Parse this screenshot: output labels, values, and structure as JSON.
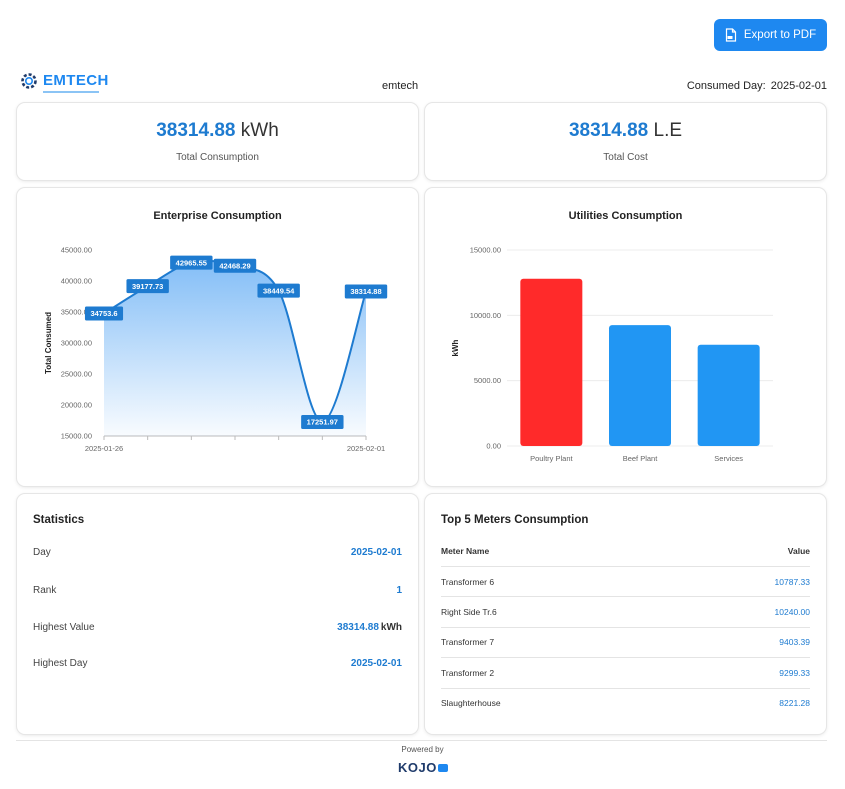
{
  "toolbar": {
    "export_label": "Export to PDF",
    "export_icon": "pdf-file-icon"
  },
  "header": {
    "logo_text": "EMTECH",
    "logo_icon": "gear-icon",
    "enterprise": "emtech",
    "consumed_day_label": "Consumed Day:",
    "consumed_day_value": "2025-02-01"
  },
  "kpis": {
    "consumption": {
      "value": "38314.88",
      "unit": "kWh",
      "label": "Total Consumption"
    },
    "cost": {
      "value": "38314.88",
      "unit": "L.E",
      "label": "Total Cost"
    }
  },
  "colors": {
    "accent": "#1e88f0",
    "value_blue": "#1e7bd0",
    "bar_red": "#ff2a2a",
    "bar_blue": "#2196f3"
  },
  "chart_data": [
    {
      "type": "area",
      "title": "Enterprise Consumption",
      "xlabel": "",
      "ylabel": "Total Consumed",
      "x": [
        "2025-01-26",
        "2025-01-27",
        "2025-01-28",
        "2025-01-29",
        "2025-01-30",
        "2025-01-31",
        "2025-02-01"
      ],
      "x_tick_labels": [
        "2025-01-26",
        "2025-02-01"
      ],
      "values": [
        34753.6,
        39177.73,
        42965.55,
        42468.29,
        38449.54,
        17251.97,
        38314.88
      ],
      "data_labels": [
        "34753.6",
        "39177.73",
        "42965.55",
        "42468.29",
        "38449.54",
        "17251.97",
        "38314.88"
      ],
      "ylim": [
        15000,
        45000
      ],
      "y_ticks": [
        15000,
        20000,
        25000,
        30000,
        35000,
        40000,
        45000
      ],
      "y_tick_labels": [
        "15000.00",
        "20000.00",
        "25000.00",
        "30000.00",
        "35000.00",
        "40000.00",
        "45000.00"
      ],
      "grid": false,
      "legend": "none"
    },
    {
      "type": "bar",
      "title": "Utilities Consumption",
      "xlabel": "",
      "ylabel": "kWh",
      "categories": [
        "Poultry Plant",
        "Beef Plant",
        "Services"
      ],
      "values": [
        12800,
        9250,
        7750
      ],
      "bar_colors": [
        "#ff2a2a",
        "#2196f3",
        "#2196f3"
      ],
      "ylim": [
        0,
        15000
      ],
      "y_ticks": [
        0,
        5000,
        10000,
        15000
      ],
      "y_tick_labels": [
        "0.00",
        "5000.00",
        "10000.00",
        "15000.00"
      ],
      "grid": true,
      "legend": "none"
    }
  ],
  "statistics": {
    "title": "Statistics",
    "rows": [
      {
        "label": "Day",
        "value": "2025-02-01",
        "unit": ""
      },
      {
        "label": "Rank",
        "value": "1",
        "unit": ""
      },
      {
        "label": "Highest Value",
        "value": "38314.88",
        "unit": "kWh"
      },
      {
        "label": "Highest Day",
        "value": "2025-02-01",
        "unit": ""
      }
    ]
  },
  "meters": {
    "title": "Top 5 Meters Consumption",
    "columns": [
      "Meter Name",
      "Value"
    ],
    "rows": [
      {
        "name": "Transformer 6",
        "value": "10787.33"
      },
      {
        "name": "Right Side Tr.6",
        "value": "10240.00"
      },
      {
        "name": "Transformer 7",
        "value": "9403.39"
      },
      {
        "name": "Transformer 2",
        "value": "9299.33"
      },
      {
        "name": "Slaughterhouse",
        "value": "8221.28"
      }
    ]
  },
  "footer": {
    "powered_by": "Powered by",
    "brand": "KOJO"
  }
}
